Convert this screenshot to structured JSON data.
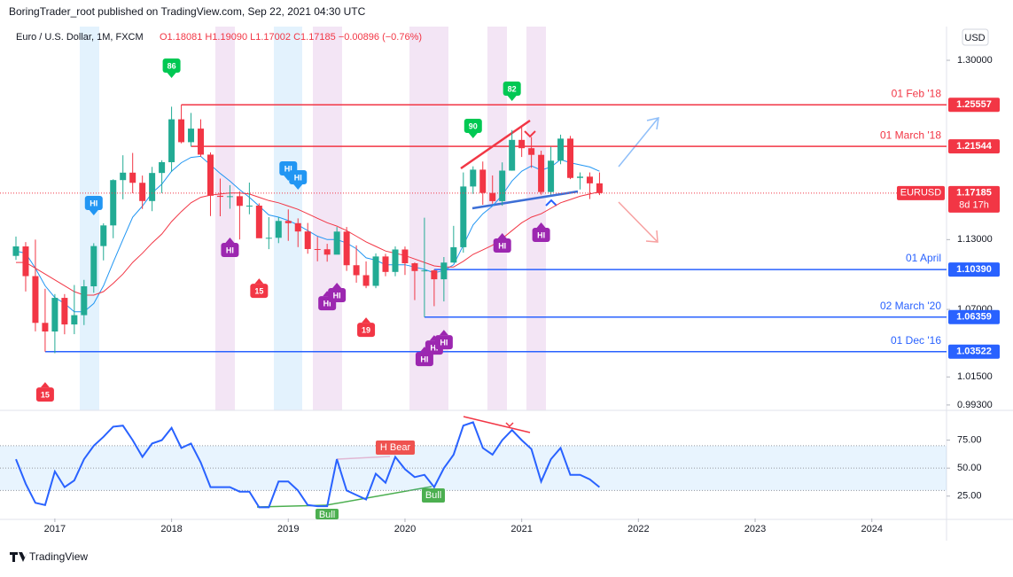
{
  "header": {
    "published": "BoringTrader_root published on TradingView.com, Sep 22, 2021 04:30 UTC",
    "currency": "USD",
    "footer": "TradingView"
  },
  "chart_data": {
    "type": "candlestick",
    "title": "Euro / U.S. Dollar, 1M, FXCM",
    "ohlc": "O1.18081 H1.19090 L1.17002 C1.17185 −0.00896 (−0.76%)",
    "log_scale": true,
    "up_color": "#22ab94",
    "down_color": "#f23645",
    "ylim": [
      0.9895,
      1.3347
    ],
    "yticks": [
      {
        "value": 1.3,
        "label": "1.30000"
      },
      {
        "value": 1.13,
        "label": "1.13000"
      },
      {
        "value": 1.07,
        "label": "1.07000"
      },
      {
        "value": 1.015,
        "label": "1.01500"
      },
      {
        "value": 0.993,
        "label": "0.99300"
      }
    ],
    "xlim": [
      2016.53,
      2024.64
    ],
    "xticks": [
      2017,
      2018,
      2019,
      2020,
      2021,
      2022,
      2023,
      2024
    ],
    "x": [
      "2016-09",
      "2016-10",
      "2016-11",
      "2016-12",
      "2017-01",
      "2017-02",
      "2017-03",
      "2017-04",
      "2017-05",
      "2017-06",
      "2017-07",
      "2017-08",
      "2017-09",
      "2017-10",
      "2017-11",
      "2017-12",
      "2018-01",
      "2018-02",
      "2018-03",
      "2018-04",
      "2018-05",
      "2018-06",
      "2018-07",
      "2018-08",
      "2018-09",
      "2018-10",
      "2018-11",
      "2018-12",
      "2019-01",
      "2019-02",
      "2019-03",
      "2019-04",
      "2019-05",
      "2019-06",
      "2019-07",
      "2019-08",
      "2019-09",
      "2019-10",
      "2019-11",
      "2019-12",
      "2020-01",
      "2020-02",
      "2020-03",
      "2020-04",
      "2020-05",
      "2020-06",
      "2020-07",
      "2020-08",
      "2020-09",
      "2020-10",
      "2020-11",
      "2020-12",
      "2021-01",
      "2021-02",
      "2021-03",
      "2021-04",
      "2021-05",
      "2021-06",
      "2021-07",
      "2021-08",
      "2021-09"
    ],
    "open": [
      1.1157,
      1.124,
      1.0982,
      1.0588,
      1.0517,
      1.0797,
      1.0575,
      1.0652,
      1.0895,
      1.1243,
      1.1426,
      1.1838,
      1.1907,
      1.1813,
      1.1646,
      1.1904,
      1.2005,
      1.2414,
      1.2194,
      1.2324,
      1.2076,
      1.1694,
      1.1684,
      1.169,
      1.1602,
      1.1604,
      1.1312,
      1.1316,
      1.1466,
      1.1446,
      1.1372,
      1.1217,
      1.1215,
      1.1168,
      1.1371,
      1.1076,
      1.099,
      1.0899,
      1.1152,
      1.1018,
      1.1213,
      1.1093,
      1.1026,
      1.1031,
      1.0955,
      1.1099,
      1.1233,
      1.1779,
      1.1935,
      1.172,
      1.1645,
      1.1926,
      1.2216,
      1.2137,
      1.2074,
      1.1728,
      1.2019,
      1.2228,
      1.1858,
      1.187,
      1.18081
    ],
    "high": [
      1.1327,
      1.1278,
      1.13,
      1.0874,
      1.0829,
      1.0829,
      1.0906,
      1.095,
      1.1268,
      1.1445,
      1.1846,
      1.207,
      1.2092,
      1.188,
      1.1961,
      1.2023,
      1.2537,
      1.2556,
      1.2476,
      1.2414,
      1.2097,
      1.1852,
      1.1791,
      1.1734,
      1.1815,
      1.1625,
      1.15,
      1.15,
      1.157,
      1.1489,
      1.1448,
      1.1324,
      1.1263,
      1.1412,
      1.1412,
      1.1249,
      1.1109,
      1.1179,
      1.1175,
      1.124,
      1.1239,
      1.11,
      1.1495,
      1.104,
      1.1147,
      1.1422,
      1.1909,
      1.1966,
      1.2011,
      1.1881,
      1.2003,
      1.231,
      1.2349,
      1.2243,
      1.2113,
      1.215,
      1.2266,
      1.2254,
      1.1909,
      1.1909,
      1.1909
    ],
    "low": [
      1.1122,
      1.0851,
      1.0518,
      1.0352,
      1.034,
      1.0494,
      1.0495,
      1.057,
      1.084,
      1.1118,
      1.1312,
      1.1662,
      1.1717,
      1.1574,
      1.1554,
      1.1718,
      1.1915,
      1.2183,
      1.2154,
      1.2055,
      1.151,
      1.1508,
      1.1576,
      1.1301,
      1.1526,
      1.1335,
      1.1216,
      1.1269,
      1.1289,
      1.1234,
      1.1176,
      1.111,
      1.1107,
      1.1181,
      1.1027,
      1.0926,
      1.0879,
      1.0879,
      1.0981,
      1.0981,
      1.0992,
      1.0778,
      1.0636,
      1.0727,
      1.0767,
      1.1097,
      1.1185,
      1.1711,
      1.1612,
      1.1622,
      1.1603,
      1.1925,
      1.2054,
      1.1952,
      1.1704,
      1.1704,
      1.1986,
      1.1847,
      1.1752,
      1.1664,
      1.17002
    ],
    "close": [
      1.124,
      1.0982,
      1.0588,
      1.0517,
      1.0797,
      1.0575,
      1.0652,
      1.0895,
      1.1243,
      1.1426,
      1.1838,
      1.1907,
      1.1813,
      1.1646,
      1.1904,
      1.2005,
      1.2414,
      1.2194,
      1.2324,
      1.2076,
      1.1694,
      1.1684,
      1.169,
      1.1602,
      1.1604,
      1.1312,
      1.1316,
      1.1466,
      1.1446,
      1.1372,
      1.1217,
      1.1215,
      1.1168,
      1.1371,
      1.1076,
      1.099,
      1.0899,
      1.1152,
      1.1018,
      1.1213,
      1.1093,
      1.1026,
      1.1031,
      1.0955,
      1.1099,
      1.1233,
      1.1779,
      1.1935,
      1.172,
      1.1645,
      1.1926,
      1.2216,
      1.2137,
      1.2074,
      1.1728,
      1.2019,
      1.2228,
      1.1858,
      1.187,
      1.1808,
      1.17185
    ],
    "lines": [
      {
        "color": "#2196f3",
        "values": [
          1.12,
          1.118,
          1.105,
          1.09,
          1.08,
          1.075,
          1.068,
          1.068,
          1.075,
          1.09,
          1.11,
          1.13,
          1.15,
          1.16,
          1.172,
          1.18,
          1.192,
          1.2,
          1.205,
          1.206,
          1.198,
          1.19,
          1.183,
          1.175,
          1.168,
          1.16,
          1.152,
          1.15,
          1.147,
          1.143,
          1.138,
          1.133,
          1.13,
          1.13,
          1.127,
          1.122,
          1.114,
          1.112,
          1.108,
          1.108,
          1.108,
          1.106,
          1.104,
          1.101,
          1.103,
          1.108,
          1.125,
          1.143,
          1.153,
          1.16,
          1.17,
          1.183,
          1.192,
          1.197,
          1.193,
          1.196,
          1.203,
          1.2,
          1.198,
          1.196,
          1.192
        ]
      },
      {
        "color": "#f23645",
        "values": [
          1.11,
          1.11,
          1.105,
          1.1,
          1.095,
          1.09,
          1.085,
          1.082,
          1.082,
          1.085,
          1.092,
          1.1,
          1.11,
          1.118,
          1.127,
          1.135,
          1.146,
          1.155,
          1.163,
          1.168,
          1.17,
          1.171,
          1.172,
          1.172,
          1.171,
          1.168,
          1.165,
          1.163,
          1.16,
          1.157,
          1.153,
          1.149,
          1.145,
          1.142,
          1.138,
          1.133,
          1.128,
          1.124,
          1.12,
          1.118,
          1.116,
          1.113,
          1.11,
          1.107,
          1.106,
          1.106,
          1.111,
          1.117,
          1.121,
          1.125,
          1.131,
          1.138,
          1.145,
          1.15,
          1.153,
          1.158,
          1.163,
          1.166,
          1.169,
          1.171,
          1.173
        ]
      }
    ],
    "levels": [
      {
        "label": "01 Feb '18",
        "value": 1.25557,
        "color": "#f23645",
        "from": "2018-02"
      },
      {
        "label": "01 March '18",
        "value": 1.21544,
        "color": "#f23645",
        "from": "2018-03"
      },
      {
        "label": "01 April",
        "value": 1.1039,
        "value_label": "1.10390",
        "color": "#2962ff",
        "from": "2020-04"
      },
      {
        "label": "02 March '20",
        "value": 1.06359,
        "color": "#2962ff",
        "from": "2020-03"
      },
      {
        "label": "01 Dec '16",
        "value": 1.03522,
        "color": "#2962ff",
        "from": "2016-12"
      }
    ],
    "last_price": {
      "name": "EURUSD",
      "value": 1.17185,
      "countdown": "8d 17h",
      "color": "#f23645"
    },
    "markers": [
      {
        "text": "86",
        "x": "2018-01",
        "y": 1.2946,
        "color": "#00c853",
        "pointer": "down"
      },
      {
        "text": "82",
        "x": "2020-12",
        "y": 1.2715,
        "color": "#00c853",
        "pointer": "down"
      },
      {
        "text": "90",
        "x": "2020-08",
        "y": 1.2351,
        "color": "#00c853",
        "pointer": "down"
      },
      {
        "text": "15",
        "x": "2018-10",
        "y": 1.0857,
        "color": "#f23645",
        "pointer": "up"
      },
      {
        "text": "19",
        "x": "2019-09",
        "y": 1.0531,
        "color": "#f23645",
        "pointer": "up"
      },
      {
        "text": "15",
        "x": "2016-12",
        "y": 1.0011,
        "color": "#f23645",
        "pointer": "up"
      },
      {
        "text": "HI",
        "x": "2017-05",
        "y": 1.1628,
        "color": "#2196f3",
        "pointer": "down"
      },
      {
        "text": "HI",
        "x": "2019-01",
        "y": 1.1947,
        "color": "#2196f3",
        "pointer": "down"
      },
      {
        "text": "HI",
        "x": "2019-02",
        "y": 1.1864,
        "color": "#2196f3",
        "pointer": "down"
      },
      {
        "text": "HI",
        "x": "2018-07",
        "y": 1.1209,
        "color": "#9c27b0",
        "pointer": "up"
      },
      {
        "text": "HI",
        "x": "2019-05",
        "y": 1.0752,
        "color": "#9c27b0",
        "pointer": "up"
      },
      {
        "text": "HI",
        "x": "2019-06",
        "y": 1.082,
        "color": "#9c27b0",
        "pointer": "up"
      },
      {
        "text": "HI",
        "x": "2020-11",
        "y": 1.1248,
        "color": "#9c27b0",
        "pointer": "up"
      },
      {
        "text": "HI",
        "x": "2021-03",
        "y": 1.1342,
        "color": "#9c27b0",
        "pointer": "up"
      },
      {
        "text": "HI",
        "x": "2020-03",
        "y": 1.0293,
        "color": "#9c27b0",
        "pointer": "up"
      },
      {
        "text": "HI",
        "x": "2020-04",
        "y": 1.0386,
        "color": "#9c27b0",
        "pointer": "up"
      },
      {
        "text": "HI",
        "x": "2020-05",
        "y": 1.0429,
        "color": "#9c27b0",
        "pointer": "up"
      }
    ],
    "oscillator": {
      "type": "line",
      "color": "#2962ff",
      "ylim": [
        5,
        100
      ],
      "band": [
        30,
        70
      ],
      "yticks": [
        {
          "value": 75,
          "label": "75.00"
        },
        {
          "value": 50,
          "label": "50.00"
        },
        {
          "value": 25,
          "label": "25.00"
        }
      ],
      "values": [
        58,
        36,
        19,
        17,
        47,
        33,
        39,
        58,
        70,
        78,
        87,
        88,
        75,
        60,
        72,
        75,
        86,
        68,
        72,
        55,
        33,
        33,
        33,
        29,
        29,
        15,
        15,
        38,
        38,
        30,
        17,
        16,
        16,
        58,
        30,
        26,
        22,
        45,
        37,
        60,
        49,
        42,
        44,
        33,
        50,
        62,
        88,
        91,
        68,
        62,
        75,
        84,
        75,
        67,
        38,
        58,
        68,
        44,
        44,
        40,
        33
      ],
      "annotations": [
        "H Bear",
        "Bull",
        "Bull"
      ]
    }
  }
}
